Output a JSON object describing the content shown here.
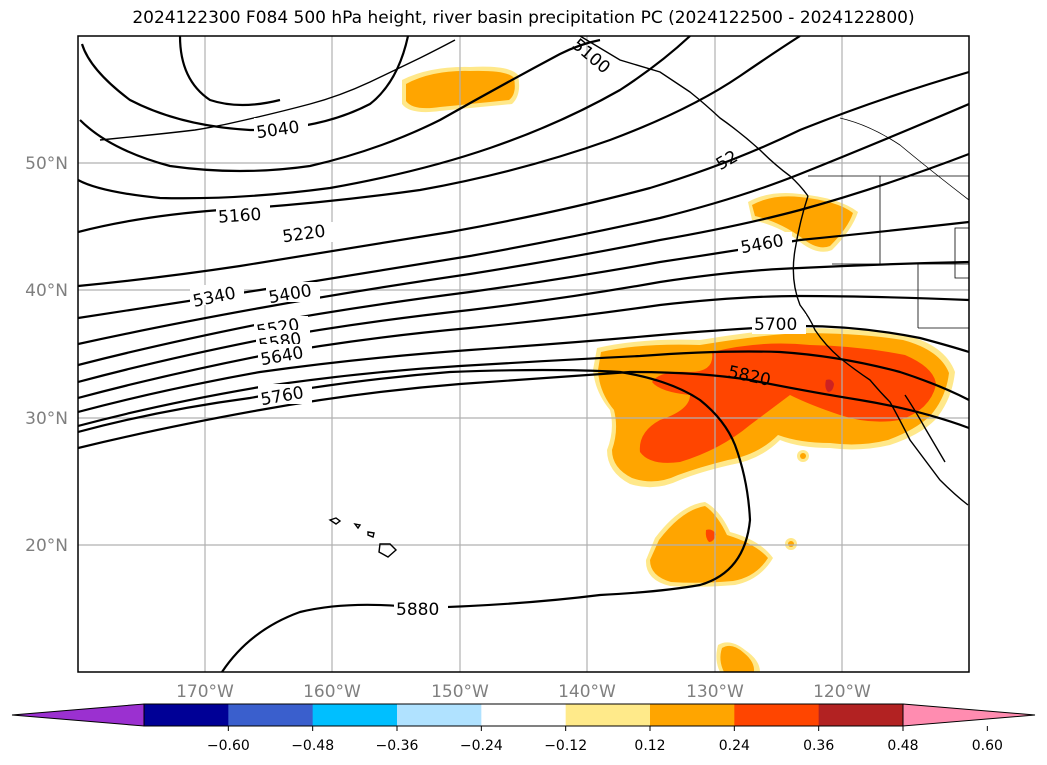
{
  "title": "2024122300 F084 500 hPa height, river basin precipitation PC (2024122500 - 2024122800)",
  "axes": {
    "lat_labels": [
      "50°N",
      "40°N",
      "30°N",
      "20°N"
    ],
    "lon_labels": [
      "170°W",
      "160°W",
      "150°W",
      "140°W",
      "130°W",
      "120°W"
    ]
  },
  "contour_labels": [
    "5040",
    "5160",
    "5220",
    "5340",
    "5400",
    "5460",
    "5520",
    "5580",
    "5640",
    "5700",
    "5760",
    "5820",
    "5880",
    "5100",
    "52"
  ],
  "colorbar": {
    "ticks": [
      "−0.60",
      "−0.48",
      "−0.36",
      "−0.24",
      "−0.12",
      "0.12",
      "0.24",
      "0.36",
      "0.48",
      "0.60"
    ],
    "colors": [
      "#9b30d0",
      "#000096",
      "#3a5fcd",
      "#00bfff",
      "#b0e2ff",
      "#ffffff",
      "#ffea8a",
      "#ffa500",
      "#ff4500",
      "#b22222",
      "#ff8cb0"
    ]
  },
  "shading_colors": {
    "c024": "#ffe88a",
    "c036": "#ffa500",
    "c048": "#ff4500",
    "c060": "#cc2222"
  }
}
